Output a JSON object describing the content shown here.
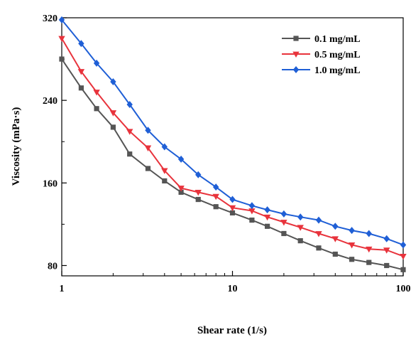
{
  "chart_data": {
    "type": "line",
    "xlabel": "Shear rate (1/s)",
    "ylabel": "Viscosity (mPa·s)",
    "xscale": "log",
    "xlim": [
      1,
      100
    ],
    "ylim": [
      70,
      320
    ],
    "x_ticks": [
      "1",
      "10",
      "100"
    ],
    "y_ticks": [
      "80",
      "160",
      "240",
      "320"
    ],
    "legend_position": "top-right",
    "grid": false,
    "series": [
      {
        "name": "0.1 mg/mL",
        "color": "#555555",
        "marker": "square",
        "x": [
          1,
          1.3,
          1.6,
          2.0,
          2.5,
          3.2,
          4.0,
          5.0,
          6.3,
          8.0,
          10,
          13,
          16,
          20,
          25,
          32,
          40,
          50,
          63,
          80,
          100
        ],
        "y": [
          280,
          252,
          232,
          214,
          188,
          174,
          162,
          151,
          144,
          137,
          131,
          124,
          118,
          111,
          104,
          97,
          91,
          86,
          83,
          80,
          76
        ]
      },
      {
        "name": "0.5 mg/mL",
        "color": "#e8333c",
        "marker": "triangle-down",
        "x": [
          1,
          1.3,
          1.6,
          2.0,
          2.5,
          3.2,
          4.0,
          5.0,
          6.3,
          8.0,
          10,
          13,
          16,
          20,
          25,
          32,
          40,
          50,
          63,
          80,
          100
        ],
        "y": [
          300,
          268,
          248,
          228,
          210,
          194,
          172,
          155,
          151,
          147,
          136,
          133,
          127,
          122,
          117,
          111,
          106,
          100,
          96,
          95,
          89
        ]
      },
      {
        "name": "1.0 mg/mL",
        "color": "#1f5fd6",
        "marker": "diamond",
        "x": [
          1,
          1.3,
          1.6,
          2.0,
          2.5,
          3.2,
          4.0,
          5.0,
          6.3,
          8.0,
          10,
          13,
          16,
          20,
          25,
          32,
          40,
          50,
          63,
          80,
          100
        ],
        "y": [
          318,
          295,
          276,
          258,
          236,
          211,
          195,
          183,
          168,
          156,
          144,
          138,
          134,
          130,
          127,
          124,
          118,
          114,
          111,
          106,
          100
        ]
      }
    ]
  }
}
